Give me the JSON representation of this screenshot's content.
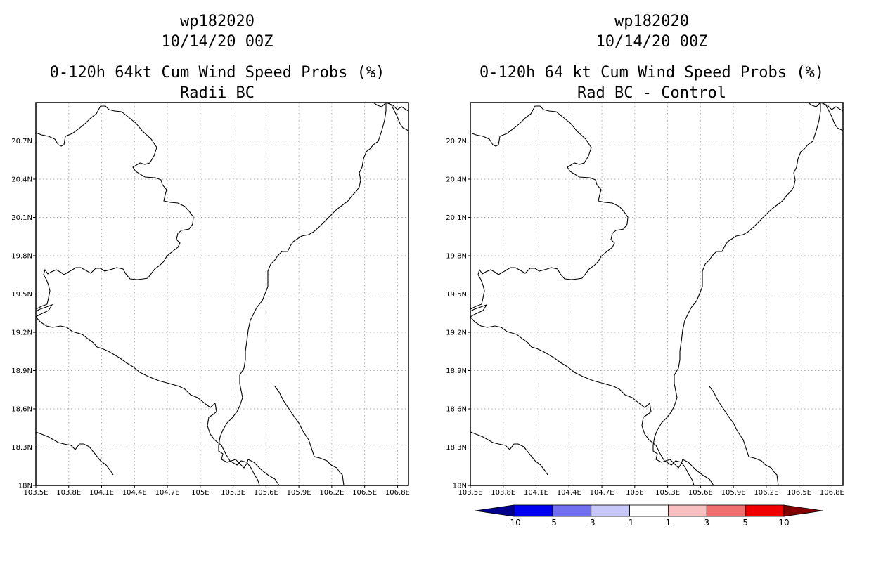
{
  "chart_data": [
    {
      "type": "map",
      "case_id": "wp182020",
      "date": "10/14/20 00Z",
      "title": "0-120h 64kt Cum Wind Speed Probs (%)",
      "subtitle": "Radii BC",
      "x_ticks": [
        "103.5E",
        "103.8E",
        "104.1E",
        "104.4E",
        "104.7E",
        "105E",
        "105.3E",
        "105.6E",
        "105.9E",
        "106.2E",
        "106.5E",
        "106.8E"
      ],
      "y_ticks": [
        "18N",
        "18.3N",
        "18.6N",
        "18.9N",
        "19.2N",
        "19.5N",
        "19.8N",
        "20.1N",
        "20.4N",
        "20.7N"
      ],
      "xlim": [
        103.5,
        106.9
      ],
      "ylim": [
        18.0,
        21.0
      ],
      "grid": true
    },
    {
      "type": "map",
      "case_id": "wp182020",
      "date": "10/14/20 00Z",
      "title": "0-120h 64 kt Cum Wind Speed Probs (%)",
      "subtitle": "Rad BC - Control",
      "x_ticks": [
        "103.5E",
        "103.8E",
        "104.1E",
        "104.4E",
        "104.7E",
        "105E",
        "105.3E",
        "105.6E",
        "105.9E",
        "106.2E",
        "106.5E",
        "106.8E"
      ],
      "y_ticks": [
        "18N",
        "18.3N",
        "18.6N",
        "18.9N",
        "19.2N",
        "19.5N",
        "19.8N",
        "20.1N",
        "20.4N",
        "20.7N"
      ],
      "xlim": [
        103.5,
        106.9
      ],
      "ylim": [
        18.0,
        21.0
      ],
      "grid": true,
      "colorbar": {
        "labels": [
          "-10",
          "-5",
          "-3",
          "-1",
          "1",
          "3",
          "5",
          "10"
        ],
        "colors": [
          "#00008b",
          "#0000f0",
          "#7070f0",
          "#c8c8f8",
          "#ffffff",
          "#f8c0c0",
          "#f07070",
          "#f00000",
          "#800000"
        ]
      }
    }
  ]
}
